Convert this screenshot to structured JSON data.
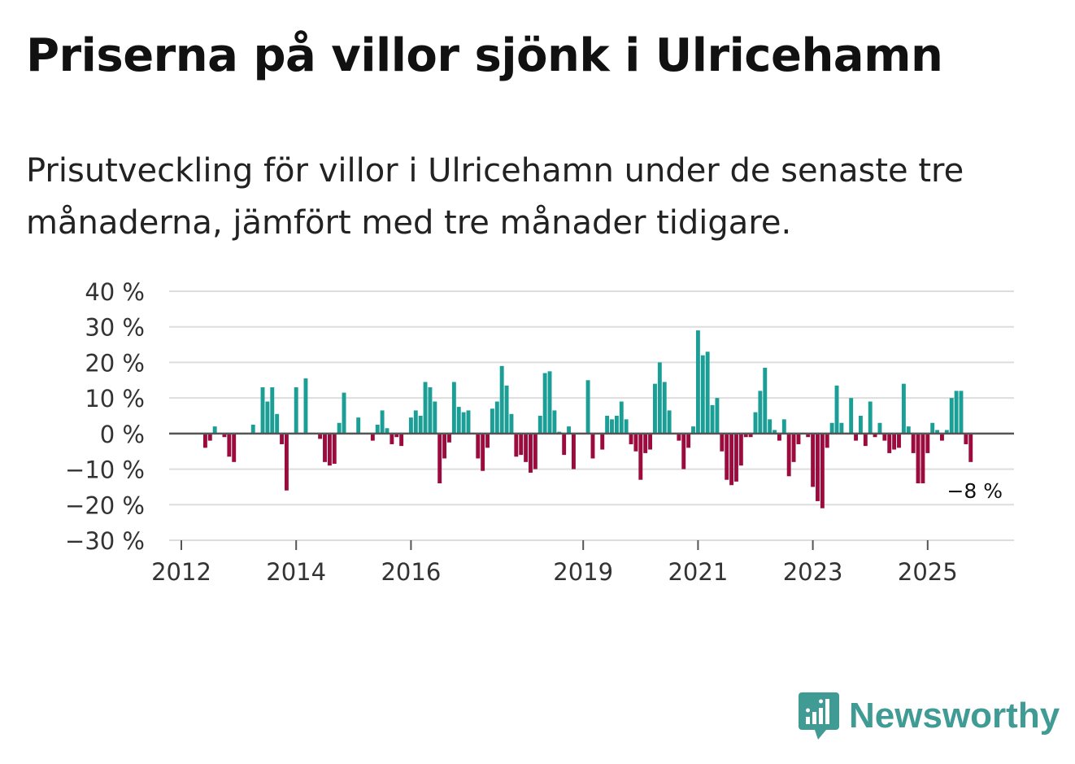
{
  "header": {
    "title": "Priserna på villor sjönk i Ulricehamn",
    "subtitle": "Prisutveckling för villor i Ulricehamn under de senaste tre månaderna, jämfört med tre månader tidigare."
  },
  "brand": {
    "name": "Newsworthy",
    "icon": "newsworthy-logo-icon"
  },
  "colors": {
    "positive": "#1a9e96",
    "negative": "#9b0b3e",
    "gridline": "#dddddd",
    "zeroline": "#555555"
  },
  "chart_data": {
    "type": "bar",
    "title": "Priserna på villor sjönk i Ulricehamn",
    "xlabel": "",
    "ylabel": "",
    "ylim": [
      -30,
      40
    ],
    "y_ticks": [
      40,
      30,
      20,
      10,
      0,
      -10,
      -20,
      -30
    ],
    "y_tick_labels": [
      "40 %",
      "30 %",
      "20 %",
      "10 %",
      "0 %",
      "−10 %",
      "−20 %",
      "−30 %"
    ],
    "x_tick_years": [
      2012,
      2014,
      2016,
      2019,
      2021,
      2023,
      2025
    ],
    "x_tick_labels": [
      "2012",
      "2014",
      "2016",
      "2019",
      "2021",
      "2023",
      "2025"
    ],
    "start": "2012-01",
    "frequency": "monthly",
    "unit": "%",
    "last_value_label": "−8 %",
    "values": [
      null,
      null,
      null,
      null,
      null,
      -4,
      -2,
      2,
      null,
      -1,
      -6.5,
      -8,
      null,
      null,
      null,
      2.5,
      null,
      13,
      9,
      13,
      5.5,
      -3,
      -16,
      null,
      13,
      null,
      15.5,
      null,
      null,
      -1.5,
      -8,
      -9,
      -8.5,
      3,
      11.5,
      null,
      null,
      4.5,
      null,
      null,
      -2,
      2.5,
      6.5,
      1.5,
      -3,
      -1,
      -3.5,
      null,
      4.5,
      6.5,
      5,
      14.5,
      13,
      9,
      -14,
      -7,
      -2.5,
      14.5,
      7.5,
      6,
      6.5,
      null,
      -7,
      -10.5,
      -4,
      7,
      9,
      19,
      13.5,
      5.5,
      -6.5,
      -6,
      -8,
      -11,
      -10,
      5,
      17,
      17.5,
      6.5,
      0.5,
      -6,
      2,
      -10,
      null,
      null,
      15,
      -7,
      null,
      -4.5,
      5,
      4,
      5,
      9,
      4,
      -3,
      -5,
      -13,
      -5.5,
      -4.5,
      14,
      20,
      14.5,
      6.5,
      null,
      -2,
      -10,
      -4,
      2,
      29,
      22,
      23,
      8,
      10,
      -5,
      -13,
      -14.5,
      -13.5,
      -9,
      -1,
      -1,
      6,
      12,
      18.5,
      4,
      1,
      -2,
      4,
      -12,
      -8,
      -3,
      null,
      -1,
      -15,
      -19,
      -21,
      -4,
      3,
      13.5,
      3,
      null,
      10,
      -2,
      5,
      -3.5,
      9,
      -1,
      3,
      -2,
      -5.5,
      -4.5,
      -4,
      14,
      2,
      -5.5,
      -14,
      -14,
      -5.5,
      3,
      1,
      -2,
      1,
      10,
      12,
      12,
      -3,
      -8
    ]
  }
}
